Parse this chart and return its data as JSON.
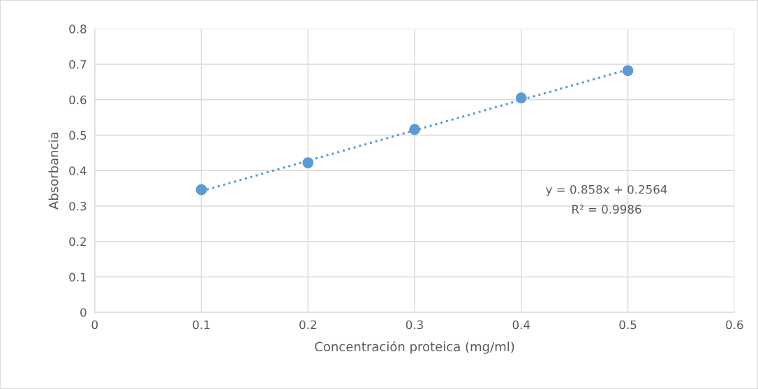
{
  "chart_data": {
    "type": "scatter",
    "xlabel": "Concentración proteica (mg/ml)",
    "ylabel": "Absorbancia",
    "x": [
      0.1,
      0.2,
      0.3,
      0.4,
      0.5
    ],
    "series": [
      {
        "color": "#5b9bd5",
        "values": [
          0.346,
          0.422,
          0.516,
          0.605,
          0.682
        ],
        "marker": "circle"
      },
      {
        "type": "line",
        "color": "#5b9bd5",
        "x": [
          0.1,
          0.5
        ],
        "values": [
          0.342,
          0.685
        ],
        "line_style": "dotted",
        "marker": "none"
      }
    ],
    "annotations": [
      "y = 0.858x + 0.2564",
      "R² = 0.9986"
    ],
    "xlim": [
      0,
      0.6
    ],
    "xticks": [
      0,
      0.1,
      0.2,
      0.3,
      0.4,
      0.5,
      0.6
    ],
    "ylim": [
      0,
      0.8
    ],
    "yticks": [
      0,
      0.1,
      0.2,
      0.3,
      0.4,
      0.5,
      0.6,
      0.7,
      0.8
    ],
    "grid": true,
    "legend": false
  }
}
